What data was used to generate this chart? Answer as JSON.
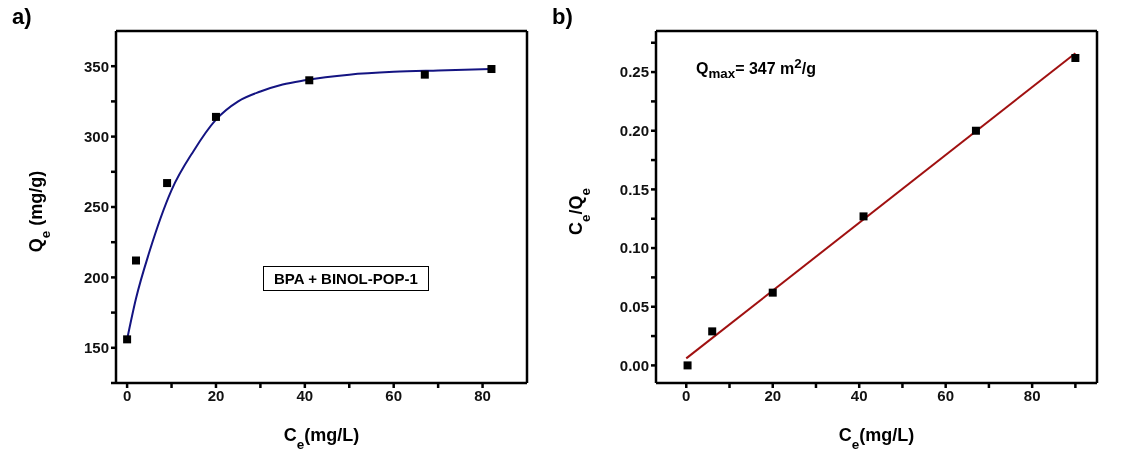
{
  "chart_data": [
    {
      "type": "scatter",
      "title": "a)",
      "xlabel": "C$_{e}$(mg/L)",
      "ylabel": "Q$_{e}$ (mg/g)",
      "annotations": [
        "BPA + BINOL-POP-1"
      ],
      "xlim": [
        -2.5,
        90
      ],
      "ylim": [
        125,
        375
      ],
      "xticks": [
        0,
        {
          "value": 10,
          "label": null
        },
        20,
        {
          "value": 30,
          "label": null
        },
        40,
        {
          "value": 50,
          "label": null
        },
        60,
        {
          "value": 70,
          "label": null
        },
        80
      ],
      "yticks": [
        {
          "value": 125,
          "label": null
        },
        150,
        {
          "value": 175,
          "label": null
        },
        200,
        {
          "value": 225,
          "label": null
        },
        250,
        {
          "value": 275,
          "label": null
        },
        300,
        {
          "value": 325,
          "label": null
        },
        350
      ],
      "series": [
        {
          "marker": "square",
          "color": "#000000",
          "x": [
            0,
            2,
            9,
            20,
            41,
            67,
            82
          ],
          "values": [
            156,
            212,
            267,
            314,
            340,
            344,
            348
          ]
        },
        {
          "type": "line",
          "marker": "none",
          "color": "#141482",
          "x": [
            0,
            2,
            5,
            10,
            15,
            20,
            25,
            30,
            35,
            40,
            50,
            60,
            70,
            82
          ],
          "values": [
            156,
            185,
            218,
            262,
            290,
            312,
            325,
            332,
            337,
            340,
            344,
            346,
            347,
            348
          ]
        }
      ]
    },
    {
      "type": "scatter",
      "title": "b)",
      "xlabel": "C$_{e}$(mg/L)",
      "ylabel": "C$_{e}$/Q$_{e}$",
      "annotations": [
        "Q$_{max}$= 347 m$^{2}$/g"
      ],
      "xlim": [
        -7,
        95
      ],
      "ylim": [
        -0.015,
        0.285
      ],
      "xticks": [
        0,
        {
          "value": 10,
          "label": null
        },
        20,
        {
          "value": 30,
          "label": null
        },
        40,
        {
          "value": 50,
          "label": null
        },
        60,
        {
          "value": 70,
          "label": null
        },
        80,
        {
          "value": 90,
          "label": null
        }
      ],
      "yticks": [
        {
          "value": 0,
          "label": "0.00"
        },
        {
          "value": 0.025,
          "label": null
        },
        0.05,
        {
          "value": 0.075,
          "label": null
        },
        {
          "value": 0.1,
          "label": "0.10"
        },
        {
          "value": 0.125,
          "label": null
        },
        0.15,
        {
          "value": 0.175,
          "label": null
        },
        {
          "value": 0.2,
          "label": "0.20"
        },
        {
          "value": 0.225,
          "label": null
        },
        0.25,
        {
          "value": 0.275,
          "label": null
        }
      ],
      "series": [
        {
          "marker": "square",
          "color": "#000000",
          "x": [
            0.3,
            6,
            20,
            41,
            67,
            90
          ],
          "values": [
            0,
            0.029,
            0.062,
            0.127,
            0.2,
            0.262
          ]
        },
        {
          "type": "line",
          "marker": "none",
          "color": "#a01010",
          "x": [
            0,
            90
          ],
          "values": [
            0.006,
            0.266
          ]
        }
      ]
    }
  ]
}
